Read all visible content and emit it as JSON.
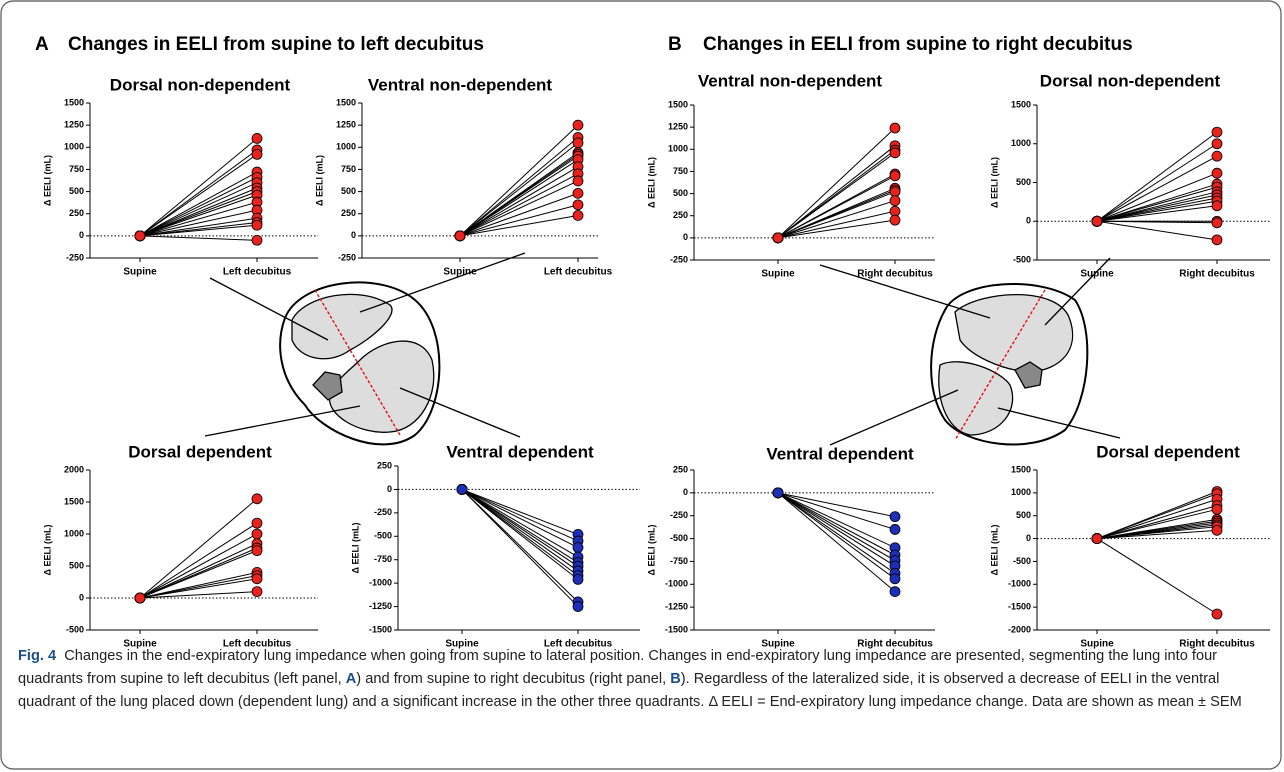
{
  "panels": [
    {
      "letter": "A",
      "heading": "Changes in EELI from supine to left decubitus"
    },
    {
      "letter": "B",
      "heading": "Changes in EELI from supine to right decubitus"
    }
  ],
  "chart_data": [
    {
      "type": "paired",
      "title": "Dorsal non-dependent",
      "ylabel": "Δ EELI   (mL)",
      "categories": [
        "Supine",
        "Left decubitus"
      ],
      "color": "#e8221c",
      "ylim": [
        -250,
        1500
      ],
      "yticks": [
        -250,
        0,
        250,
        500,
        750,
        1000,
        1250,
        1500
      ],
      "series": [
        {
          "values": [
            0,
            1100
          ]
        },
        {
          "values": [
            0,
            970
          ]
        },
        {
          "values": [
            0,
            920
          ]
        },
        {
          "values": [
            0,
            720
          ]
        },
        {
          "values": [
            0,
            660
          ]
        },
        {
          "values": [
            0,
            600
          ]
        },
        {
          "values": [
            0,
            540
          ]
        },
        {
          "values": [
            0,
            500
          ]
        },
        {
          "values": [
            0,
            460
          ]
        },
        {
          "values": [
            0,
            380
          ]
        },
        {
          "values": [
            0,
            290
          ]
        },
        {
          "values": [
            0,
            200
          ]
        },
        {
          "values": [
            0,
            150
          ]
        },
        {
          "values": [
            0,
            120
          ]
        },
        {
          "values": [
            0,
            -50
          ]
        }
      ]
    },
    {
      "type": "paired",
      "title": "Ventral non-dependent",
      "ylabel": "Δ EELI   (mL)",
      "categories": [
        "Supine",
        "Left decubitus"
      ],
      "color": "#e8221c",
      "ylim": [
        -250,
        1500
      ],
      "yticks": [
        -250,
        0,
        250,
        500,
        750,
        1000,
        1250,
        1500
      ],
      "series": [
        {
          "values": [
            0,
            1250
          ]
        },
        {
          "values": [
            0,
            1110
          ]
        },
        {
          "values": [
            0,
            1050
          ]
        },
        {
          "values": [
            0,
            940
          ]
        },
        {
          "values": [
            0,
            920
          ]
        },
        {
          "values": [
            0,
            900
          ]
        },
        {
          "values": [
            0,
            860
          ]
        },
        {
          "values": [
            0,
            780
          ]
        },
        {
          "values": [
            0,
            700
          ]
        },
        {
          "values": [
            0,
            620
          ]
        },
        {
          "values": [
            0,
            480
          ]
        },
        {
          "values": [
            0,
            350
          ]
        },
        {
          "values": [
            0,
            230
          ]
        }
      ]
    },
    {
      "type": "paired",
      "title": "Ventral non-dependent",
      "ylabel": "Δ EELI   (mL)",
      "categories": [
        "Supine",
        "Right decubitus"
      ],
      "color": "#e8221c",
      "ylim": [
        -250,
        1500
      ],
      "yticks": [
        -250,
        0,
        250,
        500,
        750,
        1000,
        1250,
        1500
      ],
      "series": [
        {
          "values": [
            0,
            1240
          ]
        },
        {
          "values": [
            0,
            1040
          ]
        },
        {
          "values": [
            0,
            990
          ]
        },
        {
          "values": [
            0,
            960
          ]
        },
        {
          "values": [
            0,
            720
          ]
        },
        {
          "values": [
            0,
            700
          ]
        },
        {
          "values": [
            0,
            560
          ]
        },
        {
          "values": [
            0,
            540
          ]
        },
        {
          "values": [
            0,
            520
          ]
        },
        {
          "values": [
            0,
            420
          ]
        },
        {
          "values": [
            0,
            300
          ]
        },
        {
          "values": [
            0,
            200
          ]
        }
      ]
    },
    {
      "type": "paired",
      "title": "Dorsal non-dependent",
      "ylabel": "Δ EELI   (mL)",
      "categories": [
        "Supine",
        "Right decubitus"
      ],
      "color": "#e8221c",
      "ylim": [
        -500,
        1500
      ],
      "yticks": [
        -500,
        0,
        500,
        1000,
        1500
      ],
      "series": [
        {
          "values": [
            0,
            1150
          ]
        },
        {
          "values": [
            0,
            1000
          ]
        },
        {
          "values": [
            0,
            840
          ]
        },
        {
          "values": [
            0,
            620
          ]
        },
        {
          "values": [
            0,
            480
          ]
        },
        {
          "values": [
            0,
            440
          ]
        },
        {
          "values": [
            0,
            380
          ]
        },
        {
          "values": [
            0,
            340
          ]
        },
        {
          "values": [
            0,
            300
          ]
        },
        {
          "values": [
            0,
            260
          ]
        },
        {
          "values": [
            0,
            200
          ]
        },
        {
          "values": [
            0,
            0
          ]
        },
        {
          "values": [
            0,
            -20
          ]
        },
        {
          "values": [
            0,
            -240
          ]
        }
      ]
    },
    {
      "type": "paired",
      "title": "Dorsal dependent",
      "ylabel": "Δ EELI   (mL)",
      "categories": [
        "Supine",
        "Left decubitus"
      ],
      "color": "#e8221c",
      "ylim": [
        -500,
        2000
      ],
      "yticks": [
        -500,
        0,
        500,
        1000,
        1500,
        2000
      ],
      "series": [
        {
          "values": [
            0,
            1550
          ]
        },
        {
          "values": [
            0,
            1170
          ]
        },
        {
          "values": [
            0,
            1000
          ]
        },
        {
          "values": [
            0,
            850
          ]
        },
        {
          "values": [
            0,
            780
          ]
        },
        {
          "values": [
            0,
            740
          ]
        },
        {
          "values": [
            0,
            400
          ]
        },
        {
          "values": [
            0,
            350
          ]
        },
        {
          "values": [
            0,
            300
          ]
        },
        {
          "values": [
            0,
            100
          ]
        }
      ]
    },
    {
      "type": "paired",
      "title": "Ventral dependent",
      "ylabel": "Δ EELI   (mL)",
      "categories": [
        "Supine",
        "Left decubitus"
      ],
      "color": "#1d2fb8",
      "ylim": [
        -1500,
        250
      ],
      "yticks": [
        -1500,
        -1250,
        -1000,
        -750,
        -500,
        -250,
        0,
        250
      ],
      "series": [
        {
          "values": [
            0,
            -480
          ]
        },
        {
          "values": [
            0,
            -550
          ]
        },
        {
          "values": [
            0,
            -620
          ]
        },
        {
          "values": [
            0,
            -720
          ]
        },
        {
          "values": [
            0,
            -780
          ]
        },
        {
          "values": [
            0,
            -820
          ]
        },
        {
          "values": [
            0,
            -870
          ]
        },
        {
          "values": [
            0,
            -920
          ]
        },
        {
          "values": [
            0,
            -960
          ]
        },
        {
          "values": [
            0,
            -1200
          ]
        },
        {
          "values": [
            0,
            -1250
          ]
        }
      ]
    },
    {
      "type": "paired",
      "title": "Ventral dependent",
      "ylabel": "Δ EELI   (mL)",
      "categories": [
        "Supine",
        "Right decubitus"
      ],
      "color": "#1d2fb8",
      "ylim": [
        -1500,
        250
      ],
      "yticks": [
        -1500,
        -1250,
        -1000,
        -750,
        -500,
        -250,
        0,
        250
      ],
      "series": [
        {
          "values": [
            0,
            -260
          ]
        },
        {
          "values": [
            0,
            -400
          ]
        },
        {
          "values": [
            0,
            -600
          ]
        },
        {
          "values": [
            0,
            -680
          ]
        },
        {
          "values": [
            0,
            -740
          ]
        },
        {
          "values": [
            0,
            -800
          ]
        },
        {
          "values": [
            0,
            -880
          ]
        },
        {
          "values": [
            0,
            -940
          ]
        },
        {
          "values": [
            0,
            -1080
          ]
        }
      ]
    },
    {
      "type": "paired",
      "title": "Dorsal dependent",
      "ylabel": "Δ EELI   (mL)",
      "categories": [
        "Supine",
        "Right decubitus"
      ],
      "color": "#e8221c",
      "ylim": [
        -2000,
        1500
      ],
      "yticks": [
        -2000,
        -1500,
        -1000,
        -500,
        0,
        500,
        1000,
        1500
      ],
      "series": [
        {
          "values": [
            0,
            1030
          ]
        },
        {
          "values": [
            0,
            980
          ]
        },
        {
          "values": [
            0,
            860
          ]
        },
        {
          "values": [
            0,
            720
          ]
        },
        {
          "values": [
            0,
            640
          ]
        },
        {
          "values": [
            0,
            420
          ]
        },
        {
          "values": [
            0,
            380
          ]
        },
        {
          "values": [
            0,
            340
          ]
        },
        {
          "values": [
            0,
            300
          ]
        },
        {
          "values": [
            0,
            260
          ]
        },
        {
          "values": [
            0,
            180
          ]
        },
        {
          "values": [
            0,
            -1650
          ]
        }
      ]
    }
  ],
  "caption": {
    "label": "Fig. 4",
    "title": "Changes in the end-expiratory lung impedance when going from supine to lateral position.",
    "parts": [
      " Changes in end-expiratory lung impedance are presented, segmenting the lung into four quadrants from supine to left decubitus (left panel, ",
      "A",
      ") and from supine to right decubitus (right panel, ",
      "B",
      "). Regardless of the lateralized side, it is observed a decrease of EELI in the ventral quadrant of the lung placed down (dependent lung) and a significant increase in the other three quadrants. Δ EELI = End-expiratory lung impedance change. Data are shown as mean ± SEM"
    ]
  }
}
